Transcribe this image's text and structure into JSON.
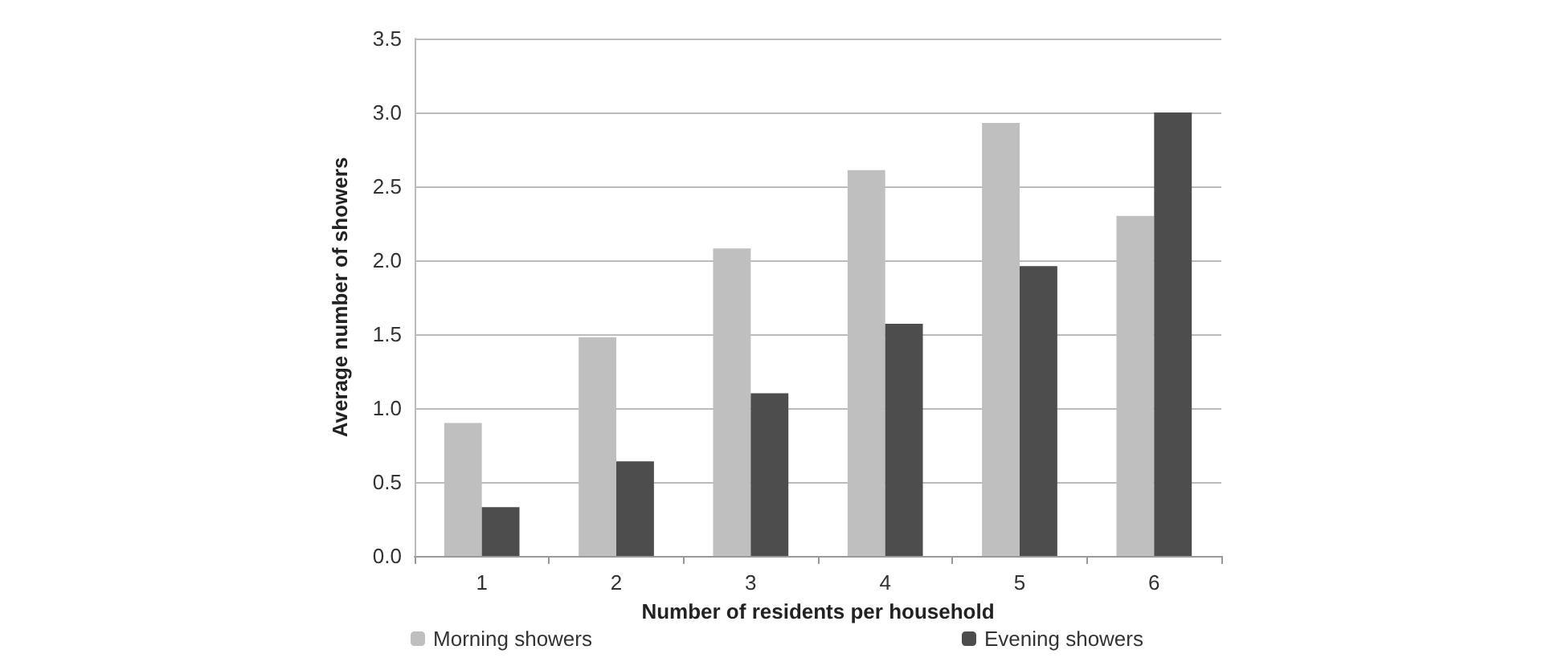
{
  "chart_data": {
    "type": "bar",
    "xlabel": "Number of residents per household",
    "ylabel": "Average number of showers",
    "categories": [
      "1",
      "2",
      "3",
      "4",
      "5",
      "6"
    ],
    "series": [
      {
        "name": "Morning showers",
        "color": "#bfbfbf",
        "values": [
          0.9,
          1.48,
          2.08,
          2.61,
          2.93,
          2.3
        ]
      },
      {
        "name": "Evening showers",
        "color": "#4d4d4d",
        "values": [
          0.33,
          0.64,
          1.1,
          1.57,
          1.96,
          3.0
        ]
      }
    ],
    "ylim": [
      0,
      3.5
    ],
    "yticks": [
      {
        "value": 0,
        "label": "0.0"
      },
      {
        "value": 0.5,
        "label": "0.5"
      },
      {
        "value": 1,
        "label": "1.0"
      },
      {
        "value": 1.5,
        "label": "1.5"
      },
      {
        "value": 2,
        "label": "2.0"
      },
      {
        "value": 2.5,
        "label": "2.5"
      },
      {
        "value": 3,
        "label": "3.0"
      },
      {
        "value": 3.5,
        "label": "3.5"
      }
    ],
    "grid": "y",
    "legend": "bottom"
  }
}
